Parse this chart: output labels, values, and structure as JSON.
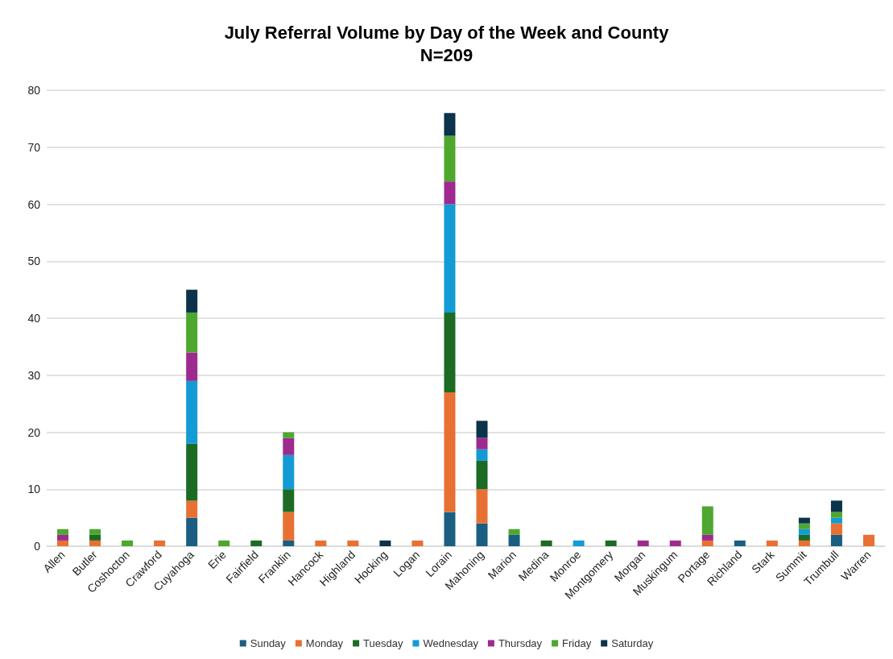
{
  "chart_data": {
    "type": "bar",
    "title": "July Referral Volume by Day of the Week and County",
    "subtitle": "N=209",
    "categories": [
      "Allen",
      "Butler",
      "Coshocton",
      "Crawford",
      "Cuyahoga",
      "Erie",
      "Fairfield",
      "Franklin",
      "Hancock",
      "Highland",
      "Hocking",
      "Logan",
      "Lorain",
      "Mahoning",
      "Marion",
      "Medina",
      "Monroe",
      "Montgomery",
      "Morgan",
      "Muskingum",
      "Portage",
      "Richland",
      "Stark",
      "Summit",
      "Trumbull",
      "Warren"
    ],
    "stacked": true,
    "series": [
      {
        "name": "Sunday",
        "color": "#1a5e82",
        "values": [
          0,
          0,
          0,
          0,
          5,
          0,
          0,
          1,
          0,
          0,
          0,
          0,
          6,
          4,
          2,
          0,
          0,
          0,
          0,
          0,
          0,
          1,
          0,
          0,
          2,
          0
        ]
      },
      {
        "name": "Monday",
        "color": "#e87033",
        "values": [
          1,
          1,
          0,
          1,
          3,
          0,
          0,
          5,
          1,
          1,
          0,
          1,
          21,
          6,
          0,
          0,
          0,
          0,
          0,
          0,
          1,
          0,
          1,
          1,
          2,
          2
        ]
      },
      {
        "name": "Tuesday",
        "color": "#1c6b24",
        "values": [
          0,
          1,
          0,
          0,
          10,
          0,
          1,
          4,
          0,
          0,
          0,
          0,
          14,
          5,
          0,
          1,
          0,
          1,
          0,
          0,
          0,
          0,
          0,
          1,
          0,
          0
        ]
      },
      {
        "name": "Wednesday",
        "color": "#129bd4",
        "values": [
          0,
          0,
          0,
          0,
          11,
          0,
          0,
          6,
          0,
          0,
          0,
          0,
          19,
          2,
          0,
          0,
          1,
          0,
          0,
          0,
          0,
          0,
          0,
          1,
          1,
          0
        ]
      },
      {
        "name": "Thursday",
        "color": "#9e2a8f",
        "values": [
          1,
          0,
          0,
          0,
          5,
          0,
          0,
          3,
          0,
          0,
          0,
          0,
          4,
          2,
          0,
          0,
          0,
          0,
          1,
          1,
          1,
          0,
          0,
          0,
          0,
          0
        ]
      },
      {
        "name": "Friday",
        "color": "#4ea72e",
        "values": [
          1,
          1,
          1,
          0,
          7,
          1,
          0,
          1,
          0,
          0,
          0,
          0,
          8,
          0,
          1,
          0,
          0,
          0,
          0,
          0,
          5,
          0,
          0,
          1,
          1,
          0
        ]
      },
      {
        "name": "Saturday",
        "color": "#0b3349",
        "values": [
          0,
          0,
          0,
          0,
          4,
          0,
          0,
          0,
          0,
          0,
          1,
          0,
          4,
          3,
          0,
          0,
          0,
          0,
          0,
          0,
          0,
          0,
          0,
          1,
          2,
          0
        ]
      }
    ],
    "ylim": [
      0,
      80
    ],
    "yticks": [
      0,
      10,
      20,
      30,
      40,
      50,
      60,
      70,
      80
    ],
    "grid": "y",
    "legend": "bottom"
  }
}
